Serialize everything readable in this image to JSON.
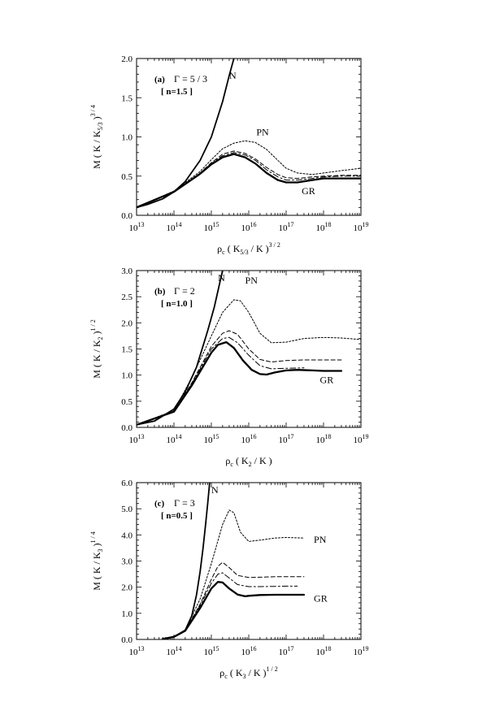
{
  "chart_data": [
    {
      "type": "line",
      "panel_label": "(a)",
      "gamma_label": "Γ = 5 / 3",
      "n_label": "[ n=1.5 ]",
      "xscale": "log",
      "xlim": [
        10000000000000.0,
        1e+19
      ],
      "ylim": [
        0,
        2.0
      ],
      "xticks": [
        {
          "base": "10",
          "exp": "13"
        },
        {
          "base": "10",
          "exp": "14"
        },
        {
          "base": "10",
          "exp": "15"
        },
        {
          "base": "10",
          "exp": "16"
        },
        {
          "base": "10",
          "exp": "17"
        },
        {
          "base": "10",
          "exp": "18"
        },
        {
          "base": "10",
          "exp": "19"
        }
      ],
      "yticks": [
        "0.0",
        "0.5",
        "1.0",
        "1.5",
        "2.0"
      ],
      "ytick_values": [
        0,
        0.5,
        1.0,
        1.5,
        2.0
      ],
      "xlabel": {
        "main": "ρ",
        "sub": "c",
        "rest": "( K",
        "sub2": "5/3",
        "rest2": "/ K )",
        "sup": "3 / 2"
      },
      "ylabel": {
        "main": "M ( K / K",
        "sub": "5/3",
        "rest": ")",
        "sup": "3 / 4"
      },
      "annotations": [
        {
          "text": "N",
          "x": 3000000000000000.0,
          "y": 1.74
        },
        {
          "text": "PN",
          "x": 1.6e+16,
          "y": 1.02
        },
        {
          "text": "GR",
          "x": 2.6e+17,
          "y": 0.27
        }
      ],
      "series": [
        {
          "style": "newtonian",
          "x": [
            10000000000000.0,
            20000000000000.0,
            50000000000000.0,
            100000000000000.0,
            200000000000000.0,
            500000000000000.0,
            1000000000000000.0,
            2000000000000000.0,
            3000000000000000.0,
            4000000000000000.0
          ],
          "y": [
            0.1,
            0.14,
            0.21,
            0.3,
            0.43,
            0.7,
            1.0,
            1.45,
            1.78,
            2.0
          ]
        },
        {
          "style": "post-newtonian",
          "x": [
            10000000000000.0,
            100000000000000.0,
            500000000000000.0,
            1000000000000000.0,
            2000000000000000.0,
            4000000000000000.0,
            8000000000000000.0,
            1.5e+16,
            3e+16,
            6e+16,
            1e+17,
            2e+17,
            5e+17,
            1e+18,
            3e+18,
            1e+19
          ],
          "y": [
            0.1,
            0.31,
            0.56,
            0.71,
            0.85,
            0.92,
            0.95,
            0.93,
            0.84,
            0.7,
            0.6,
            0.54,
            0.52,
            0.54,
            0.57,
            0.6
          ]
        },
        {
          "style": "dashed",
          "x": [
            10000000000000.0,
            100000000000000.0,
            500000000000000.0,
            1000000000000000.0,
            2000000000000000.0,
            4000000000000000.0,
            8000000000000000.0,
            1.5e+16,
            3e+16,
            6e+16,
            1e+17,
            2e+17,
            5e+17,
            1e+18,
            3e+18,
            1e+19
          ],
          "y": [
            0.1,
            0.3,
            0.54,
            0.67,
            0.78,
            0.82,
            0.79,
            0.72,
            0.61,
            0.52,
            0.48,
            0.47,
            0.49,
            0.5,
            0.51,
            0.51
          ]
        },
        {
          "style": "dash-dot",
          "x": [
            10000000000000.0,
            100000000000000.0,
            500000000000000.0,
            1000000000000000.0,
            2000000000000000.0,
            4000000000000000.0,
            8000000000000000.0,
            1.5e+16,
            3e+16,
            6e+16,
            1e+17,
            2e+17,
            5e+17,
            1e+18,
            3e+18,
            1e+19
          ],
          "y": [
            0.1,
            0.3,
            0.54,
            0.66,
            0.76,
            0.8,
            0.77,
            0.7,
            0.58,
            0.49,
            0.45,
            0.45,
            0.47,
            0.49,
            0.5,
            0.5
          ]
        },
        {
          "style": "general-relativity",
          "x": [
            10000000000000.0,
            100000000000000.0,
            500000000000000.0,
            1000000000000000.0,
            2000000000000000.0,
            4000000000000000.0,
            8000000000000000.0,
            1.5e+16,
            3e+16,
            6e+16,
            1e+17,
            2e+17,
            5e+17,
            1e+18,
            3e+18,
            1e+19
          ],
          "y": [
            0.1,
            0.3,
            0.53,
            0.65,
            0.74,
            0.78,
            0.74,
            0.66,
            0.54,
            0.45,
            0.42,
            0.42,
            0.45,
            0.47,
            0.47,
            0.47
          ]
        }
      ]
    },
    {
      "type": "line",
      "panel_label": "(b)",
      "gamma_label": "Γ = 2",
      "n_label": "[ n=1.0 ]",
      "xscale": "log",
      "xlim": [
        10000000000000.0,
        1e+19
      ],
      "ylim": [
        0,
        3.0
      ],
      "xticks": [
        {
          "base": "10",
          "exp": "13"
        },
        {
          "base": "10",
          "exp": "14"
        },
        {
          "base": "10",
          "exp": "15"
        },
        {
          "base": "10",
          "exp": "16"
        },
        {
          "base": "10",
          "exp": "17"
        },
        {
          "base": "10",
          "exp": "18"
        },
        {
          "base": "10",
          "exp": "19"
        }
      ],
      "yticks": [
        "0.0",
        "0.5",
        "1.0",
        "1.5",
        "2.0",
        "2.5",
        "3.0"
      ],
      "ytick_values": [
        0,
        0.5,
        1.0,
        1.5,
        2.0,
        2.5,
        3.0
      ],
      "xlabel": {
        "main": "ρ",
        "sub": "c",
        "rest": "( K",
        "sub2": "2",
        "rest2": "/ K )",
        "sup": ""
      },
      "ylabel": {
        "main": "M ( K / K",
        "sub": "2",
        "rest": ")",
        "sup": "1 / 2"
      },
      "annotations": [
        {
          "text": "N",
          "x": 1500000000000000.0,
          "y": 2.8
        },
        {
          "text": "PN",
          "x": 8000000000000000.0,
          "y": 2.75
        },
        {
          "text": "GR",
          "x": 8e+17,
          "y": 0.85
        }
      ],
      "series": [
        {
          "style": "newtonian",
          "x": [
            10000000000000.0,
            30000000000000.0,
            100000000000000.0,
            200000000000000.0,
            400000000000000.0,
            800000000000000.0,
            1200000000000000.0,
            1600000000000000.0,
            2000000000000000.0
          ],
          "y": [
            0.05,
            0.12,
            0.35,
            0.68,
            1.15,
            1.85,
            2.3,
            2.7,
            3.0
          ]
        },
        {
          "style": "post-newtonian",
          "x": [
            10000000000000.0,
            100000000000000.0,
            300000000000000.0,
            1000000000000000.0,
            2000000000000000.0,
            4000000000000000.0,
            6000000000000000.0,
            1e+16,
            2e+16,
            4e+16,
            1e+17,
            3e+17,
            1e+18,
            3e+18,
            1e+19
          ],
          "y": [
            0.05,
            0.32,
            0.95,
            1.75,
            2.2,
            2.44,
            2.42,
            2.2,
            1.8,
            1.62,
            1.63,
            1.7,
            1.72,
            1.71,
            1.68
          ]
        },
        {
          "style": "dashed",
          "x": [
            10000000000000.0,
            100000000000000.0,
            300000000000000.0,
            1000000000000000.0,
            2000000000000000.0,
            3000000000000000.0,
            5000000000000000.0,
            1e+16,
            2e+16,
            4e+16,
            1e+17,
            3e+17,
            1e+18,
            3e+18
          ],
          "y": [
            0.05,
            0.3,
            0.85,
            1.55,
            1.8,
            1.85,
            1.78,
            1.5,
            1.3,
            1.25,
            1.28,
            1.29,
            1.29,
            1.29
          ]
        },
        {
          "style": "dash-dot",
          "x": [
            10000000000000.0,
            100000000000000.0,
            300000000000000.0,
            1000000000000000.0,
            2000000000000000.0,
            3000000000000000.0,
            5000000000000000.0,
            1e+16,
            2e+16,
            4e+16,
            1e+17,
            3e+17
          ],
          "y": [
            0.05,
            0.3,
            0.83,
            1.5,
            1.7,
            1.72,
            1.62,
            1.38,
            1.18,
            1.12,
            1.13,
            1.14
          ]
        },
        {
          "style": "general-relativity",
          "x": [
            10000000000000.0,
            100000000000000.0,
            300000000000000.0,
            1000000000000000.0,
            1500000000000000.0,
            2500000000000000.0,
            4000000000000000.0,
            7000000000000000.0,
            1.2e+16,
            2e+16,
            3e+16,
            5e+16,
            1e+17,
            2e+17,
            5e+17,
            1e+18,
            3e+18
          ],
          "y": [
            0.05,
            0.3,
            0.8,
            1.43,
            1.58,
            1.63,
            1.52,
            1.28,
            1.1,
            1.02,
            1.01,
            1.05,
            1.09,
            1.1,
            1.09,
            1.08,
            1.08
          ]
        }
      ]
    },
    {
      "type": "line",
      "panel_label": "(c)",
      "gamma_label": "Γ = 3",
      "n_label": "[ n=0.5 ]",
      "xscale": "log",
      "xlim": [
        10000000000000.0,
        1e+19
      ],
      "ylim": [
        0,
        6.0
      ],
      "xticks": [
        {
          "base": "10",
          "exp": "13"
        },
        {
          "base": "10",
          "exp": "14"
        },
        {
          "base": "10",
          "exp": "15"
        },
        {
          "base": "10",
          "exp": "16"
        },
        {
          "base": "10",
          "exp": "17"
        },
        {
          "base": "10",
          "exp": "18"
        },
        {
          "base": "10",
          "exp": "19"
        }
      ],
      "yticks": [
        "0.0",
        "1.0",
        "2.0",
        "3.0",
        "4.0",
        "5.0",
        "6.0"
      ],
      "ytick_values": [
        0,
        1.0,
        2.0,
        3.0,
        4.0,
        5.0,
        6.0
      ],
      "xlabel": {
        "main": "ρ",
        "sub": "c",
        "rest": "( K",
        "sub2": "3",
        "rest2": "/ K )",
        "sup": "1 / 2"
      },
      "ylabel": {
        "main": "M ( K / K",
        "sub": "3",
        "rest": ")",
        "sup": "1 / 4"
      },
      "annotations": [
        {
          "text": "N",
          "x": 1000000000000000.0,
          "y": 5.6
        },
        {
          "text": "PN",
          "x": 5.5e+17,
          "y": 3.7
        },
        {
          "text": "GR",
          "x": 5.5e+17,
          "y": 1.45
        }
      ],
      "series": [
        {
          "style": "newtonian",
          "x": [
            50000000000000.0,
            100000000000000.0,
            200000000000000.0,
            300000000000000.0,
            400000000000000.0,
            500000000000000.0,
            600000000000000.0,
            700000000000000.0,
            800000000000000.0,
            900000000000000.0
          ],
          "y": [
            0.02,
            0.1,
            0.35,
            0.9,
            1.7,
            2.6,
            3.5,
            4.4,
            5.2,
            6.0
          ]
        },
        {
          "style": "post-newtonian",
          "x": [
            50000000000000.0,
            100000000000000.0,
            200000000000000.0,
            500000000000000.0,
            1000000000000000.0,
            2000000000000000.0,
            3000000000000000.0,
            4000000000000000.0,
            6000000000000000.0,
            1e+16,
            2e+16,
            5e+16,
            1e+17,
            3e+17
          ],
          "y": [
            0.02,
            0.1,
            0.35,
            1.55,
            2.9,
            4.4,
            4.95,
            4.85,
            4.1,
            3.75,
            3.8,
            3.88,
            3.9,
            3.88
          ]
        },
        {
          "style": "dashed",
          "x": [
            50000000000000.0,
            100000000000000.0,
            200000000000000.0,
            500000000000000.0,
            1000000000000000.0,
            1500000000000000.0,
            2000000000000000.0,
            3000000000000000.0,
            5000000000000000.0,
            1e+16,
            2e+16,
            5e+16,
            1e+17,
            3e+17
          ],
          "y": [
            0.02,
            0.1,
            0.34,
            1.35,
            2.3,
            2.8,
            2.95,
            2.75,
            2.45,
            2.37,
            2.38,
            2.4,
            2.4,
            2.4
          ]
        },
        {
          "style": "dash-dot",
          "x": [
            50000000000000.0,
            100000000000000.0,
            200000000000000.0,
            500000000000000.0,
            1000000000000000.0,
            1500000000000000.0,
            2000000000000000.0,
            3000000000000000.0,
            5000000000000000.0,
            1e+16,
            2e+16,
            5e+16,
            1e+17,
            2e+17
          ],
          "y": [
            0.02,
            0.1,
            0.34,
            1.3,
            2.15,
            2.5,
            2.55,
            2.35,
            2.1,
            2.02,
            2.02,
            2.03,
            2.04,
            2.04
          ]
        },
        {
          "style": "general-relativity",
          "x": [
            50000000000000.0,
            100000000000000.0,
            200000000000000.0,
            500000000000000.0,
            1000000000000000.0,
            1500000000000000.0,
            2000000000000000.0,
            3000000000000000.0,
            5000000000000000.0,
            8000000000000000.0,
            1e+16,
            2e+16,
            5e+16,
            1e+17,
            3e+17
          ],
          "y": [
            0.02,
            0.1,
            0.33,
            1.2,
            1.95,
            2.2,
            2.18,
            1.95,
            1.72,
            1.65,
            1.67,
            1.7,
            1.71,
            1.71,
            1.71
          ]
        }
      ]
    }
  ]
}
